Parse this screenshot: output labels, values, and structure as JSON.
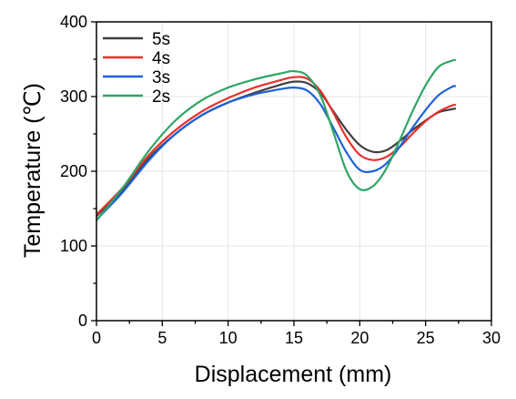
{
  "chart_data": {
    "type": "line",
    "xlabel": "Displacement (mm)",
    "ylabel": "Temperature (℃)",
    "xlim": [
      0,
      30
    ],
    "ylim": [
      0,
      400
    ],
    "x_ticks": [
      "0",
      "5",
      "10",
      "15",
      "20",
      "25",
      "30"
    ],
    "y_ticks": [
      "0",
      "100",
      "200",
      "300",
      "400"
    ],
    "grid": true,
    "legend_position": "top-left",
    "series": [
      {
        "name": "5s",
        "color": "#404040",
        "points": [
          [
            0,
            140
          ],
          [
            2,
            175
          ],
          [
            4,
            218
          ],
          [
            6,
            250
          ],
          [
            8,
            275
          ],
          [
            10,
            292
          ],
          [
            12,
            305
          ],
          [
            14,
            316
          ],
          [
            15,
            320
          ],
          [
            16,
            318
          ],
          [
            17,
            305
          ],
          [
            18,
            280
          ],
          [
            19,
            255
          ],
          [
            20,
            235
          ],
          [
            21,
            226
          ],
          [
            22,
            228
          ],
          [
            23,
            240
          ],
          [
            24,
            255
          ],
          [
            25,
            268
          ],
          [
            26,
            279
          ],
          [
            27,
            283
          ],
          [
            27.3,
            284
          ]
        ]
      },
      {
        "name": "4s",
        "color": "#e8302e",
        "points": [
          [
            0,
            142
          ],
          [
            2,
            178
          ],
          [
            4,
            222
          ],
          [
            6,
            255
          ],
          [
            8,
            280
          ],
          [
            10,
            298
          ],
          [
            12,
            312
          ],
          [
            14,
            322
          ],
          [
            15,
            326
          ],
          [
            16,
            324
          ],
          [
            17,
            308
          ],
          [
            18,
            278
          ],
          [
            19,
            245
          ],
          [
            20,
            222
          ],
          [
            21,
            215
          ],
          [
            22,
            219
          ],
          [
            23,
            232
          ],
          [
            24,
            250
          ],
          [
            25,
            267
          ],
          [
            26,
            280
          ],
          [
            27,
            288
          ],
          [
            27.3,
            289
          ]
        ]
      },
      {
        "name": "3s",
        "color": "#1e62d8",
        "points": [
          [
            0,
            135
          ],
          [
            2,
            172
          ],
          [
            4,
            215
          ],
          [
            6,
            250
          ],
          [
            8,
            275
          ],
          [
            10,
            292
          ],
          [
            12,
            303
          ],
          [
            14,
            310
          ],
          [
            15,
            312
          ],
          [
            16,
            308
          ],
          [
            17,
            290
          ],
          [
            18,
            258
          ],
          [
            19,
            225
          ],
          [
            20,
            202
          ],
          [
            21,
            200
          ],
          [
            22,
            210
          ],
          [
            23,
            232
          ],
          [
            24,
            258
          ],
          [
            25,
            282
          ],
          [
            26,
            302
          ],
          [
            27,
            313
          ],
          [
            27.3,
            314
          ]
        ]
      },
      {
        "name": "2s",
        "color": "#2ea566",
        "points": [
          [
            0,
            134
          ],
          [
            2,
            178
          ],
          [
            4,
            228
          ],
          [
            6,
            268
          ],
          [
            8,
            295
          ],
          [
            10,
            312
          ],
          [
            12,
            323
          ],
          [
            14,
            331
          ],
          [
            15,
            334
          ],
          [
            16,
            328
          ],
          [
            17,
            302
          ],
          [
            18,
            252
          ],
          [
            19,
            200
          ],
          [
            20,
            176
          ],
          [
            21,
            180
          ],
          [
            22,
            203
          ],
          [
            23,
            240
          ],
          [
            24,
            280
          ],
          [
            25,
            315
          ],
          [
            26,
            340
          ],
          [
            27,
            348
          ],
          [
            27.3,
            349
          ]
        ]
      }
    ]
  }
}
